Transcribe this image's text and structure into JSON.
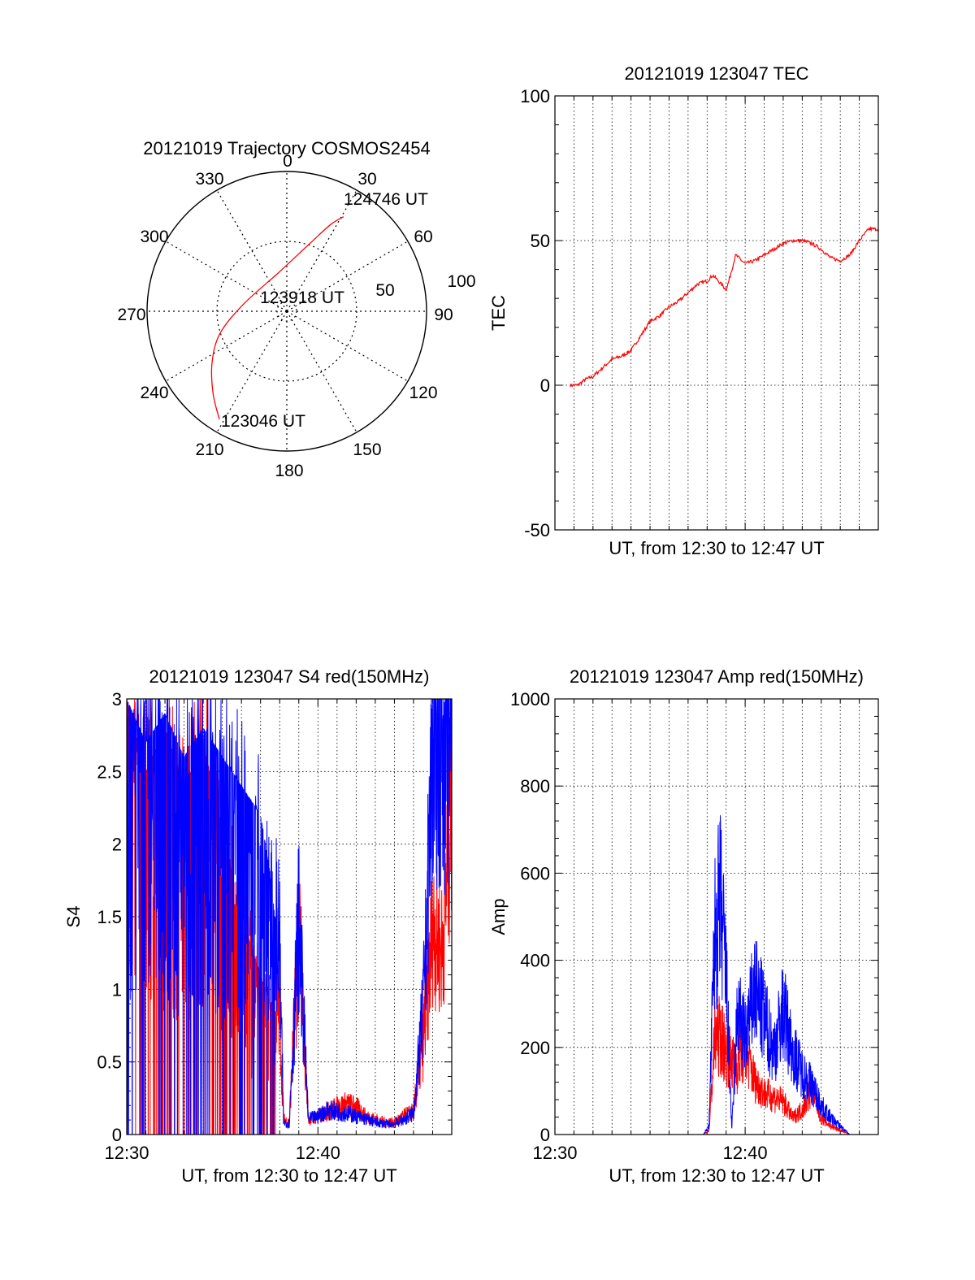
{
  "colors": {
    "red": "#ff0000",
    "blue": "#0000ff",
    "axis": "#000000",
    "grid": "#000000",
    "background": "#ffffff"
  },
  "chart_data": [
    {
      "id": "trajectory",
      "type": "polar",
      "title": "20121019 Trajectory COSMOS2454",
      "azimuth_labels": [
        "0",
        "30",
        "60",
        "90",
        "120",
        "150",
        "180",
        "210",
        "240",
        "270",
        "300",
        "330"
      ],
      "radial_labels": [
        "50",
        "100"
      ],
      "annotations": [
        "124746 UT",
        "123918 UT",
        "123046 UT"
      ],
      "grid": true,
      "series": [
        {
          "color": "red",
          "points": [
            {
              "azimuth": 212,
              "elevation": 8
            },
            {
              "azimuth": 222,
              "elevation": 19
            },
            {
              "azimuth": 236,
              "elevation": 32
            },
            {
              "azimuth": 252,
              "elevation": 45
            },
            {
              "azimuth": 280,
              "elevation": 62
            },
            {
              "azimuth": 350,
              "elevation": 64
            },
            {
              "azimuth": 20,
              "elevation": 42
            },
            {
              "azimuth": 27,
              "elevation": 27
            },
            {
              "azimuth": 31,
              "elevation": 19
            }
          ]
        }
      ]
    },
    {
      "id": "tec",
      "type": "line",
      "title": "20121019 123047 TEC",
      "xlabel": "UT, from 12:30 to 12:47 UT",
      "ylabel": "TEC",
      "xlim": [
        0,
        17
      ],
      "ylim": [
        -50,
        100
      ],
      "yticks": [
        "-50",
        "0",
        "50",
        "100"
      ],
      "grid": true,
      "series": [
        {
          "color": "red",
          "x": [
            0.8,
            1.2,
            1.6,
            2.0,
            2.5,
            3.0,
            3.5,
            4.0,
            4.5,
            5.0,
            5.5,
            6.0,
            6.5,
            7.0,
            7.5,
            8.0,
            8.3,
            8.6,
            9.0,
            9.1,
            9.5,
            10.0,
            10.5,
            11.0,
            11.5,
            12.0,
            12.5,
            13.0,
            13.5,
            14.0,
            14.5,
            15.0,
            15.5,
            16.0,
            16.5,
            17.0
          ],
          "y": [
            0,
            0,
            2,
            3,
            6,
            9,
            10,
            12,
            17,
            22,
            24,
            27,
            29,
            32,
            35,
            36,
            38,
            36,
            33,
            35,
            45,
            42,
            43,
            45,
            47,
            49,
            50,
            50,
            49,
            47,
            44,
            43,
            45,
            50,
            54,
            54
          ]
        }
      ]
    },
    {
      "id": "s4",
      "type": "line",
      "title": "20121019 123047 S4 red(150MHz)",
      "xlabel": "UT, from 12:30 to 12:47 UT",
      "ylabel": "S4",
      "xlim": [
        0,
        17
      ],
      "ylim": [
        0,
        3
      ],
      "xticks": [
        "12:30",
        "12:40"
      ],
      "yticks": [
        "0",
        "0.5",
        "1",
        "1.5",
        "2",
        "2.5",
        "3"
      ],
      "grid": true,
      "series": [
        {
          "color": "red",
          "x": [
            0.0,
            1.0,
            2.0,
            3.0,
            4.0,
            5.0,
            6.0,
            7.0,
            7.5,
            8.0,
            8.2,
            8.5,
            9.0,
            9.5,
            10.0,
            10.5,
            11.0,
            11.5,
            12.0,
            12.5,
            13.0,
            13.5,
            14.0,
            14.5,
            15.0,
            15.5,
            16.0,
            16.5,
            17.0
          ],
          "y": [
            3.0,
            2.5,
            2.8,
            2.4,
            2.7,
            2.1,
            1.5,
            1.1,
            0.9,
            0.8,
            0.1,
            0.08,
            1.3,
            0.1,
            0.12,
            0.15,
            0.18,
            0.2,
            0.18,
            0.12,
            0.1,
            0.08,
            0.08,
            0.12,
            0.15,
            0.6,
            1.6,
            1.4,
            2.6
          ]
        },
        {
          "color": "blue",
          "x": [
            0.0,
            1.0,
            2.0,
            3.0,
            4.0,
            5.0,
            6.0,
            7.0,
            7.5,
            8.0,
            8.2,
            8.5,
            9.0,
            9.5,
            10.0,
            10.5,
            11.0,
            11.5,
            12.0,
            12.5,
            13.0,
            13.5,
            14.0,
            14.5,
            15.0,
            15.5,
            16.0,
            16.5,
            17.0
          ],
          "y": [
            3.0,
            2.7,
            2.9,
            2.6,
            2.8,
            2.6,
            2.4,
            2.2,
            1.8,
            1.2,
            0.08,
            0.07,
            1.4,
            0.1,
            0.12,
            0.16,
            0.15,
            0.14,
            0.12,
            0.1,
            0.08,
            0.07,
            0.07,
            0.1,
            0.14,
            0.8,
            3.0,
            3.0,
            3.0
          ]
        }
      ]
    },
    {
      "id": "amp",
      "type": "line",
      "title": "20121019 123047 Amp red(150MHz)",
      "xlabel": "UT, from 12:30 to 12:47 UT",
      "ylabel": "Amp",
      "xlim": [
        0,
        17
      ],
      "ylim": [
        0,
        1000
      ],
      "xticks": [
        "12:30",
        "12:40"
      ],
      "yticks": [
        "0",
        "200",
        "400",
        "600",
        "800",
        "1000"
      ],
      "grid": true,
      "series": [
        {
          "color": "red",
          "x": [
            0.0,
            7.8,
            8.1,
            8.4,
            8.7,
            9.0,
            9.5,
            10.0,
            10.5,
            11.0,
            11.5,
            12.0,
            12.5,
            13.0,
            13.5,
            14.0,
            14.5,
            15.0,
            15.5,
            17.0
          ],
          "y": [
            0,
            0,
            10,
            230,
            240,
            200,
            160,
            210,
            130,
            100,
            90,
            80,
            40,
            60,
            110,
            40,
            20,
            10,
            0,
            0
          ]
        },
        {
          "color": "blue",
          "x": [
            0.0,
            7.8,
            8.1,
            8.4,
            8.7,
            9.0,
            9.3,
            9.6,
            10.0,
            10.5,
            11.0,
            11.5,
            12.0,
            12.5,
            13.0,
            13.5,
            14.0,
            14.5,
            15.0,
            15.5,
            17.0
          ],
          "y": [
            0,
            0,
            20,
            480,
            560,
            380,
            10,
            300,
            230,
            350,
            280,
            200,
            300,
            200,
            150,
            120,
            70,
            40,
            20,
            0,
            0
          ]
        }
      ]
    }
  ]
}
